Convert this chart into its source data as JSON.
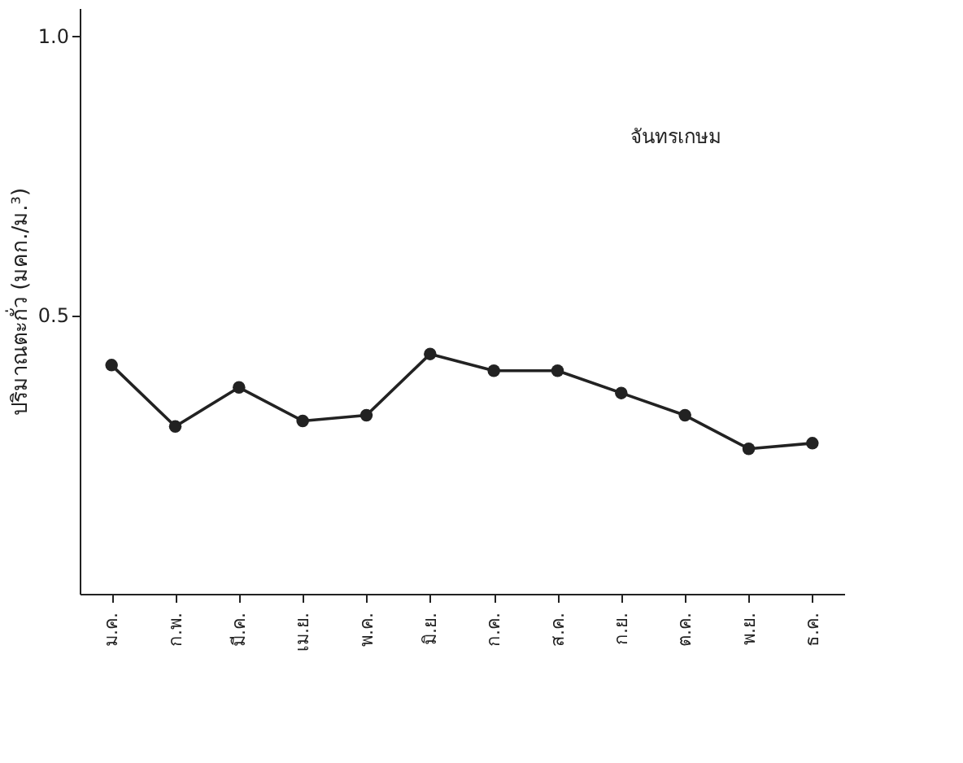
{
  "chart_data": {
    "type": "line",
    "ylabel": "ปริมาณตะกั่ว (มคก./ม.³)",
    "categories": [
      "ม.ค.",
      "ก.พ.",
      "มี.ค.",
      "เม.ย.",
      "พ.ค.",
      "มิ.ย.",
      "ก.ค.",
      "ส.ค.",
      "ก.ย.",
      "ต.ค.",
      "พ.ย.",
      "ธ.ค."
    ],
    "series": [
      {
        "color": "#222222",
        "values": [
          0.41,
          0.3,
          0.37,
          0.31,
          0.32,
          0.43,
          0.4,
          0.4,
          0.36,
          0.32,
          0.26,
          0.27
        ]
      }
    ],
    "ylim": [
      0,
      1.05
    ],
    "yticks": [
      0.5,
      {
        "value": 1.0,
        "label": "1.0"
      }
    ],
    "annotations": [
      "จันทรเกษม"
    ],
    "marker": "circle",
    "line_style": "solid",
    "grid": false
  }
}
